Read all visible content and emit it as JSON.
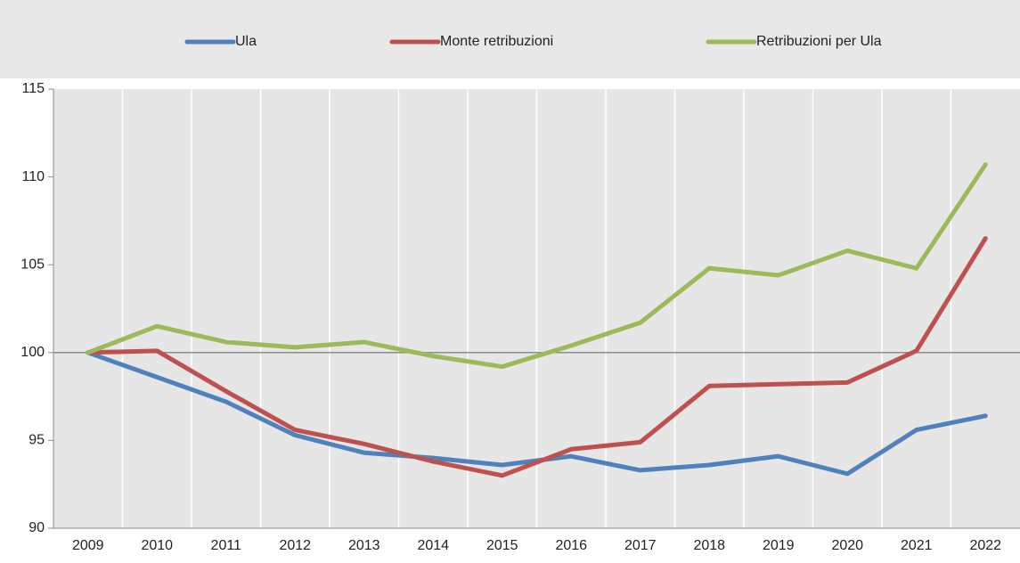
{
  "chart_data": {
    "type": "line",
    "categories": [
      "2009",
      "2010",
      "2011",
      "2012",
      "2013",
      "2014",
      "2015",
      "2016",
      "2017",
      "2018",
      "2019",
      "2020",
      "2021",
      "2022"
    ],
    "series": [
      {
        "name": "Ula",
        "color": "#4f81bd",
        "values": [
          100,
          98.6,
          97.2,
          95.3,
          94.3,
          94.0,
          93.6,
          94.1,
          93.3,
          93.6,
          94.1,
          93.1,
          95.6,
          96.4
        ]
      },
      {
        "name": "Monte retribuzioni",
        "color": "#c0504d",
        "values": [
          100,
          100.1,
          97.8,
          95.6,
          94.8,
          93.8,
          93.0,
          94.5,
          94.9,
          98.1,
          98.2,
          98.3,
          100.1,
          106.5
        ]
      },
      {
        "name": "Retribuzioni per Ula",
        "color": "#9bbb59",
        "values": [
          100,
          101.5,
          100.6,
          100.3,
          100.6,
          99.8,
          99.2,
          100.4,
          101.7,
          104.8,
          104.4,
          105.8,
          104.8,
          110.7
        ]
      }
    ],
    "ylim": [
      90,
      115
    ],
    "yticks": [
      90,
      95,
      100,
      105,
      110,
      115
    ],
    "reference_line": 100,
    "legend": "top"
  }
}
